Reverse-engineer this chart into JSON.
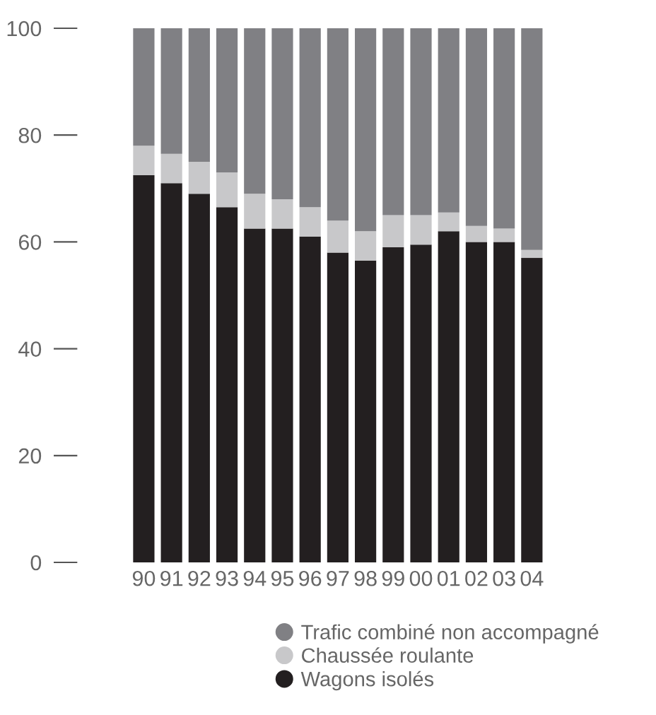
{
  "chart_data": {
    "type": "bar",
    "stacked": true,
    "categories": [
      "90",
      "91",
      "92",
      "93",
      "94",
      "95",
      "96",
      "97",
      "98",
      "99",
      "00",
      "01",
      "02",
      "03",
      "04"
    ],
    "series": [
      {
        "name": "Wagons isolés",
        "color": "#231f20",
        "values": [
          72.5,
          71,
          69,
          66.5,
          62.5,
          62.5,
          61,
          58,
          56.5,
          59,
          59.5,
          62,
          60,
          60,
          57
        ]
      },
      {
        "name": "Chaussée roulante",
        "color": "#c8c8ca",
        "values": [
          5.5,
          5.5,
          6,
          6.5,
          6.5,
          5.5,
          5.5,
          6,
          5.5,
          6,
          5.5,
          3.5,
          3,
          2.5,
          1.5
        ]
      },
      {
        "name": "Trafic combiné non accompagné",
        "color": "#808084",
        "values": [
          22,
          23.5,
          25,
          27,
          31,
          32,
          33.5,
          36,
          38,
          35,
          35,
          34.5,
          37,
          37.5,
          41.5
        ]
      }
    ],
    "ylim": [
      0,
      100
    ],
    "yticks": [
      0,
      20,
      40,
      60,
      80,
      100
    ],
    "grid": false,
    "legend": "bottom",
    "marker": "circle"
  }
}
